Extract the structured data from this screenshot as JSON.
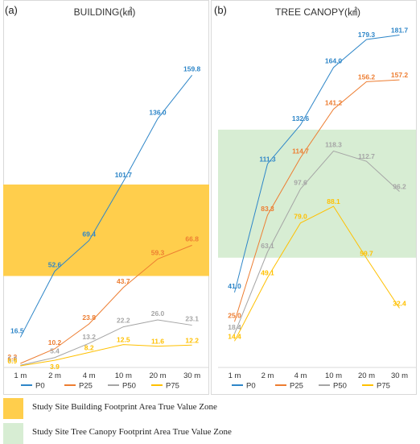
{
  "panels": [
    {
      "label": "(a)",
      "title": "BUILDING(㎢)",
      "zone_range": [
        50,
        100
      ],
      "zone_color": "#FFCE4C",
      "zone_legend": "Study Site Building Footprint Area True Value Zone"
    },
    {
      "label": "(b)",
      "title": "TREE CANOPY(㎢)",
      "zone_range": [
        60,
        130
      ],
      "zone_color": "#D7EDD3",
      "zone_legend": "Study Site Tree Canopy Footprint Area True Value Zone"
    }
  ],
  "series_colors": {
    "P0": "#2E86C8",
    "P25": "#ED7D31",
    "P50": "#A5A5A5",
    "P75": "#FFC000"
  },
  "chart_data": [
    {
      "type": "line",
      "title": "BUILDING(㎢)",
      "categories": [
        "1 m",
        "2 m",
        "4 m",
        "10 m",
        "20 m",
        "30 m"
      ],
      "ylim": [
        0,
        200
      ],
      "grid": false,
      "legend": "bottom",
      "series": [
        {
          "name": "P0",
          "values": [
            16.5,
            52.6,
            69.4,
            101.7,
            136.0,
            159.8
          ]
        },
        {
          "name": "P25",
          "values": [
            2.2,
            10.2,
            23.8,
            43.7,
            59.3,
            66.8
          ]
        },
        {
          "name": "P50",
          "values": [
            1.2,
            5.4,
            13.2,
            22.2,
            26.0,
            23.1
          ]
        },
        {
          "name": "P75",
          "values": [
            0.9,
            3.9,
            8.2,
            12.5,
            11.6,
            12.2
          ]
        }
      ]
    },
    {
      "type": "line",
      "title": "TREE CANOPY(㎢)",
      "categories": [
        "1 m",
        "2 m",
        "4 m",
        "10 m",
        "20 m",
        "30 m"
      ],
      "ylim": [
        0,
        200
      ],
      "grid": false,
      "legend": "bottom",
      "series": [
        {
          "name": "P0",
          "values": [
            41.0,
            111.3,
            132.6,
            164.0,
            179.3,
            181.7
          ]
        },
        {
          "name": "P25",
          "values": [
            25.0,
            83.3,
            114.7,
            141.2,
            156.2,
            157.2
          ]
        },
        {
          "name": "P50",
          "values": [
            18.4,
            63.1,
            97.6,
            118.3,
            112.7,
            96.2
          ]
        },
        {
          "name": "P75",
          "values": [
            14.4,
            49.1,
            79.0,
            88.1,
            59.7,
            32.4
          ]
        }
      ]
    }
  ]
}
